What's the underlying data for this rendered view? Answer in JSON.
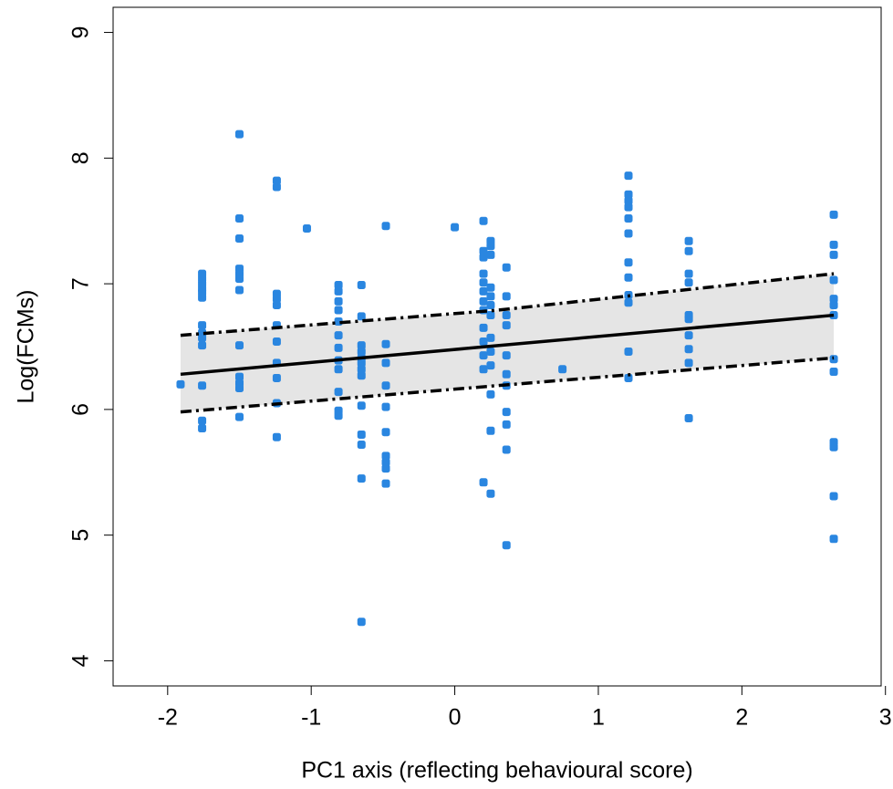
{
  "chart_data": {
    "type": "scatter",
    "x_label": "PC1 axis (reflecting behavioural score)",
    "y_label": "Log(FCMs)",
    "xlim": [
      -2.38,
      2.97
    ],
    "ylim": [
      3.8,
      9.2
    ],
    "xticks": [
      -2,
      -1,
      0,
      1,
      2,
      3
    ],
    "yticks": [
      4,
      5,
      6,
      7,
      8,
      9
    ],
    "series": [
      {
        "color": "#2a86e0",
        "x": [
          -1.91,
          -1.76,
          -1.76,
          -1.76,
          -1.76,
          -1.76,
          -1.76,
          -1.76,
          -1.76,
          -1.76,
          -1.76,
          -1.76,
          -1.76,
          -1.76,
          -1.5,
          -1.5,
          -1.5,
          -1.5,
          -1.5,
          -1.5,
          -1.5,
          -1.5,
          -1.5,
          -1.5,
          -1.5,
          -1.5,
          -1.24,
          -1.24,
          -1.24,
          -1.24,
          -1.24,
          -1.24,
          -1.24,
          -1.24,
          -1.24,
          -1.24,
          -1.24,
          -1.03,
          -0.81,
          -0.81,
          -0.81,
          -0.81,
          -0.81,
          -0.81,
          -0.81,
          -0.81,
          -0.81,
          -0.81,
          -0.81,
          -0.81,
          -0.65,
          -0.65,
          -0.65,
          -0.65,
          -0.65,
          -0.65,
          -0.65,
          -0.65,
          -0.65,
          -0.65,
          -0.65,
          -0.65,
          -0.65,
          -0.48,
          -0.48,
          -0.48,
          -0.48,
          -0.48,
          -0.48,
          -0.48,
          -0.48,
          -0.48,
          -0.48,
          0,
          0.2,
          0.2,
          0.2,
          0.2,
          0.2,
          0.2,
          0.2,
          0.2,
          0.2,
          0.2,
          0.2,
          0.2,
          0.2,
          0.25,
          0.25,
          0.25,
          0.25,
          0.25,
          0.25,
          0.25,
          0.25,
          0.25,
          0.25,
          0.25,
          0.25,
          0.25,
          0.36,
          0.36,
          0.36,
          0.36,
          0.36,
          0.36,
          0.36,
          0.36,
          0.36,
          0.36,
          0.36,
          0.75,
          1.21,
          1.21,
          1.21,
          1.21,
          1.21,
          1.21,
          1.21,
          1.21,
          1.21,
          1.21,
          1.21,
          1.21,
          1.63,
          1.63,
          1.63,
          1.63,
          1.63,
          1.63,
          1.63,
          1.63,
          1.63,
          1.63,
          2.64,
          2.64,
          2.64,
          2.64,
          2.64,
          2.64,
          2.64,
          2.64,
          2.64,
          2.64,
          2.64,
          2.64,
          2.64
        ],
        "y": [
          6.2,
          7.08,
          7.04,
          7.0,
          6.96,
          6.93,
          6.89,
          6.67,
          6.61,
          6.57,
          6.51,
          6.19,
          5.91,
          5.85,
          8.19,
          7.52,
          7.36,
          7.12,
          7.08,
          7.04,
          6.95,
          6.51,
          6.26,
          6.21,
          6.17,
          5.94,
          7.82,
          7.77,
          6.92,
          6.88,
          6.83,
          6.67,
          6.54,
          6.37,
          6.25,
          6.05,
          5.78,
          7.44,
          6.99,
          6.94,
          6.86,
          6.79,
          6.7,
          6.59,
          6.49,
          6.39,
          6.32,
          6.14,
          5.99,
          5.95,
          6.99,
          6.74,
          6.51,
          6.46,
          6.41,
          6.37,
          6.27,
          6.03,
          5.8,
          5.72,
          5.45,
          4.31,
          6.32,
          7.46,
          6.52,
          6.37,
          6.19,
          6.02,
          5.82,
          5.63,
          5.58,
          5.53,
          5.41,
          7.45,
          7.5,
          7.26,
          7.21,
          7.08,
          7.01,
          6.94,
          6.86,
          6.79,
          6.65,
          6.54,
          6.43,
          6.32,
          5.42,
          7.34,
          7.3,
          7.23,
          6.97,
          6.9,
          6.83,
          6.75,
          6.57,
          6.46,
          6.35,
          6.12,
          5.83,
          5.33,
          7.13,
          6.9,
          6.75,
          6.67,
          6.43,
          6.28,
          6.19,
          5.98,
          5.88,
          5.68,
          4.92,
          6.32,
          7.86,
          7.71,
          7.66,
          7.61,
          7.52,
          7.4,
          7.17,
          7.05,
          6.91,
          6.85,
          6.46,
          6.25,
          7.34,
          7.26,
          7.08,
          7.01,
          6.75,
          6.72,
          6.59,
          6.48,
          6.37,
          5.93,
          7.55,
          7.31,
          7.23,
          7.03,
          6.88,
          6.83,
          6.75,
          6.4,
          6.3,
          5.74,
          5.7,
          5.31,
          4.97
        ]
      }
    ],
    "fit": {
      "color": "#000000",
      "x": [
        -1.91,
        2.64
      ],
      "y": [
        6.28,
        6.75
      ]
    },
    "ci": {
      "fill": "#e5e5e5",
      "color": "#000000",
      "x": [
        -1.91,
        0.3,
        2.64
      ],
      "lower": [
        5.98,
        6.19,
        6.41
      ],
      "upper": [
        6.59,
        6.79,
        7.08
      ]
    }
  }
}
